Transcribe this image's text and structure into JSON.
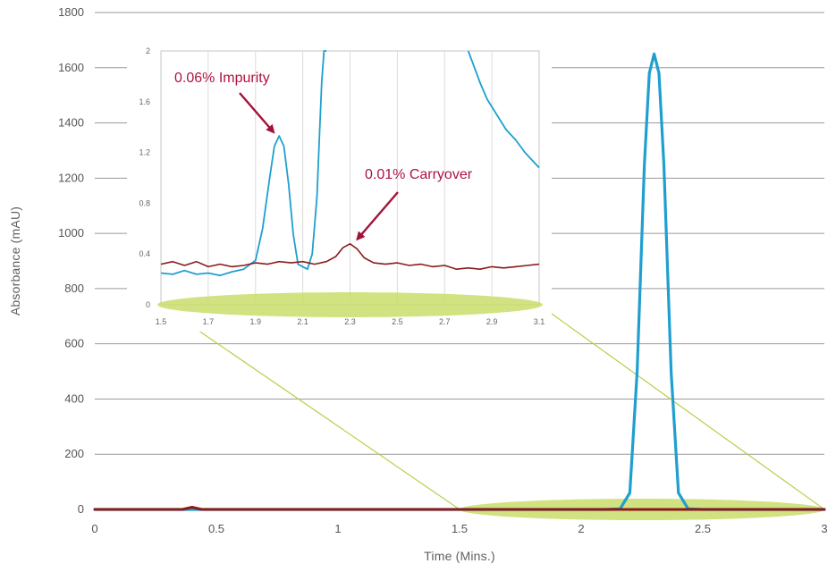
{
  "chart_data": [
    {
      "type": "line",
      "xlabel": "Time (Mins.)",
      "ylabel": "Absorbance (mAU)",
      "xlim": [
        0,
        3
      ],
      "ylim": [
        0,
        1800
      ],
      "xticks": [
        "0",
        "0.5",
        "1",
        "1.5",
        "2",
        "2.5",
        "3"
      ],
      "yticks": [
        "0",
        "200",
        "400",
        "600",
        "800",
        "1000",
        "1200",
        "1400",
        "1600",
        "1800"
      ],
      "grid": "horizontal",
      "colors": {
        "blue": "#1f9fd0",
        "red": "#8b1a1a",
        "highlight": "#c9dd6a"
      },
      "series": [
        {
          "color": "blue",
          "x": [
            0,
            2.1,
            2.16,
            2.2,
            2.23,
            2.26,
            2.28,
            2.3,
            2.32,
            2.34,
            2.37,
            2.4,
            2.44,
            2.5,
            3.0
          ],
          "y": [
            0,
            0,
            2,
            60,
            500,
            1250,
            1580,
            1650,
            1580,
            1250,
            500,
            60,
            2,
            0,
            0
          ]
        },
        {
          "color": "red",
          "x": [
            0,
            0.36,
            0.4,
            0.44,
            3.0
          ],
          "y": [
            0,
            0,
            8,
            0,
            0
          ]
        }
      ],
      "highlight_range": [
        1.5,
        3.0
      ]
    },
    {
      "type": "line",
      "inset": true,
      "xlim": [
        1.5,
        3.1
      ],
      "ylim": [
        0,
        2
      ],
      "xticks": [
        "1.5",
        "1.7",
        "1.9",
        "2.1",
        "2.3",
        "2.5",
        "2.7",
        "2.9",
        "3.1"
      ],
      "yticks": [
        "0",
        "0.4",
        "0.8",
        "1.2",
        "1.6",
        "2"
      ],
      "grid": "vertical",
      "series": [
        {
          "color": "blue",
          "x": [
            1.5,
            1.55,
            1.6,
            1.65,
            1.7,
            1.75,
            1.8,
            1.85,
            1.9,
            1.93,
            1.96,
            1.98,
            2.0,
            2.02,
            2.04,
            2.06,
            2.08,
            2.1,
            2.12,
            2.14,
            2.16,
            2.17,
            2.18,
            2.19,
            2.2
          ],
          "y": [
            0.25,
            0.24,
            0.27,
            0.24,
            0.25,
            0.23,
            0.26,
            0.28,
            0.35,
            0.6,
            1.0,
            1.25,
            1.33,
            1.25,
            0.95,
            0.55,
            0.32,
            0.3,
            0.28,
            0.4,
            0.85,
            1.3,
            1.75,
            2.0,
            2.0
          ]
        },
        {
          "color": "blue",
          "x": [
            2.8,
            2.82,
            2.85,
            2.88,
            2.92,
            2.96,
            3.0,
            3.04,
            3.08,
            3.1
          ],
          "y": [
            2.0,
            1.9,
            1.75,
            1.62,
            1.5,
            1.38,
            1.3,
            1.2,
            1.12,
            1.08
          ]
        },
        {
          "color": "red",
          "x": [
            1.5,
            1.55,
            1.6,
            1.65,
            1.7,
            1.75,
            1.8,
            1.85,
            1.9,
            1.95,
            2.0,
            2.05,
            2.1,
            2.15,
            2.2,
            2.24,
            2.27,
            2.3,
            2.33,
            2.36,
            2.4,
            2.45,
            2.5,
            2.55,
            2.6,
            2.65,
            2.7,
            2.75,
            2.8,
            2.85,
            2.9,
            2.95,
            3.0,
            3.05,
            3.1
          ],
          "y": [
            0.32,
            0.34,
            0.31,
            0.34,
            0.3,
            0.32,
            0.3,
            0.31,
            0.33,
            0.32,
            0.34,
            0.33,
            0.34,
            0.32,
            0.34,
            0.38,
            0.45,
            0.48,
            0.44,
            0.37,
            0.33,
            0.32,
            0.33,
            0.31,
            0.32,
            0.3,
            0.31,
            0.28,
            0.29,
            0.28,
            0.3,
            0.29,
            0.3,
            0.31,
            0.32
          ]
        }
      ],
      "annotations": [
        {
          "text": "0.06% Impurity",
          "x": 2.0,
          "y": 1.33
        },
        {
          "text": "0.01% Carryover",
          "x": 2.3,
          "y": 0.48
        }
      ]
    }
  ]
}
